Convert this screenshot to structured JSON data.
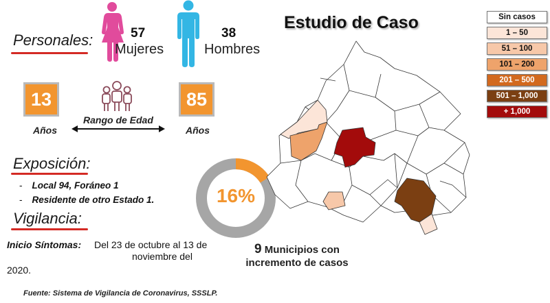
{
  "personal": {
    "heading": "Personales:",
    "women_count": "57",
    "women_label": "Mujeres",
    "men_count": "38",
    "men_label": "Hombres",
    "women_color": "#e14b9c",
    "men_color": "#33b6e4"
  },
  "age": {
    "min": "13",
    "max": "85",
    "unit_label": "Años",
    "range_label": "Rango de Edad"
  },
  "exposure": {
    "heading": "Exposición:",
    "items": [
      "Local  94, Foráneo 1",
      "Residente de otro Estado 1."
    ]
  },
  "surveillance": {
    "heading": "Vigilancia:",
    "onset_label": "Inicio Síntomas:",
    "onset_text_1": "Del 23 de octubre al 13 de",
    "onset_text_2": "noviembre del",
    "onset_text_3": "2020."
  },
  "map": {
    "title": "Estudio de Caso",
    "legend": [
      {
        "label": "Sin casos",
        "color": "#ffffff",
        "dark": false
      },
      {
        "label": "1 – 50",
        "color": "#fce5d8",
        "dark": false
      },
      {
        "label": "51 – 100",
        "color": "#f7c8a9",
        "dark": false
      },
      {
        "label": "101 – 200",
        "color": "#eea36b",
        "dark": false
      },
      {
        "label": "201 – 500",
        "color": "#d2691e",
        "dark": true
      },
      {
        "label": "501 – 1,000",
        "color": "#7b3f12",
        "dark": true
      },
      {
        "label": "+ 1,000",
        "color": "#a30b0b",
        "dark": true
      }
    ]
  },
  "increase": {
    "percent": 16,
    "percent_label": "16%",
    "count": "9",
    "text_line1": "Municipios con",
    "text_line2": "incremento de casos",
    "ring_color": "#f2952f",
    "ring_bg": "#a6a6a6"
  },
  "source": "Fuente: Sistema de Vigilancia de Coronavirus, SSSLP."
}
